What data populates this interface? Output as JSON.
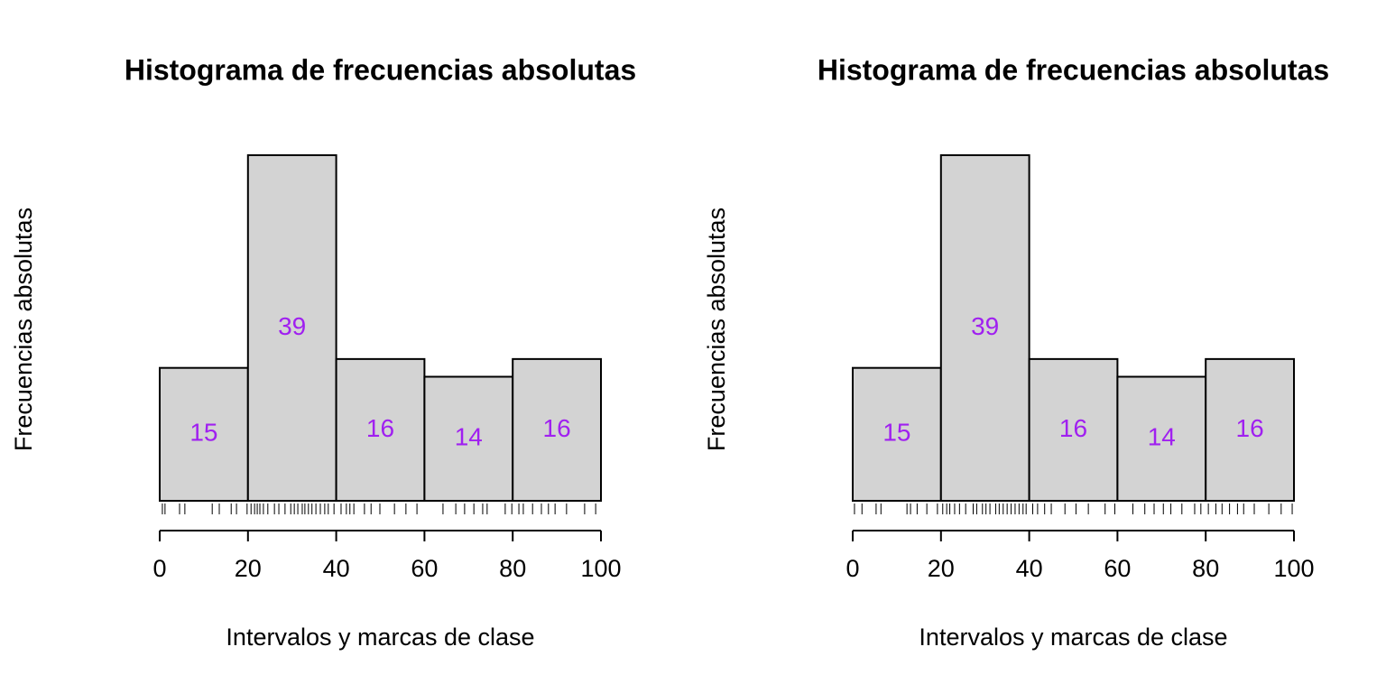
{
  "chart_data": [
    {
      "type": "histogram",
      "title": "Histograma de frecuencias absolutas",
      "xlabel": "Intervalos y marcas de clase",
      "ylabel": "Frecuencias absolutas",
      "bins": [
        0,
        20,
        40,
        60,
        80,
        100
      ],
      "counts": [
        15,
        39,
        16,
        14,
        16
      ],
      "color": "#d3d3d3",
      "label_color": "#a020f0",
      "xlim": [
        0,
        100
      ],
      "xticks": [
        0,
        20,
        40,
        60,
        80,
        100
      ],
      "rug": [
        0.6,
        1.2,
        4.5,
        5.7,
        11.9,
        13.5,
        16.2,
        17.4,
        19.8,
        20.7,
        21.5,
        22.1,
        22.7,
        23.5,
        24.5,
        26,
        27,
        28.4,
        29.7,
        30.5,
        31.3,
        32.3,
        32.9,
        33.7,
        34.5,
        35.4,
        36.4,
        37.4,
        38.2,
        39.5,
        41.1,
        42.3,
        43.1,
        44,
        46.4,
        47.9,
        49.9,
        53.2,
        55.8,
        58.3,
        64.2,
        67.1,
        69.1,
        71.2,
        73.2,
        74.2,
        78.3,
        79.8,
        81.4,
        82.4,
        84.5,
        86.5,
        88.1,
        89.6,
        92.2,
        96.3,
        98.8
      ]
    },
    {
      "type": "histogram",
      "title": "Histograma de frecuencias absolutas",
      "xlabel": "Intervalos y marcas de clase",
      "ylabel": "Frecuencias absolutas",
      "bins": [
        0,
        20,
        40,
        60,
        80,
        100
      ],
      "counts": [
        15,
        39,
        16,
        14,
        16
      ],
      "color": "#d3d3d3",
      "label_color": "#a020f0",
      "xlim": [
        0,
        100
      ],
      "xticks": [
        0,
        20,
        40,
        60,
        80,
        100
      ],
      "rug": [
        0.4,
        2.1,
        5.3,
        6.4,
        12.3,
        13.1,
        14.6,
        16.8,
        19.2,
        20.4,
        21.3,
        22,
        23.1,
        24.2,
        25.6,
        27.3,
        28.1,
        29.4,
        30.2,
        31.1,
        32.4,
        33.2,
        34.1,
        35,
        35.9,
        36.8,
        37.7,
        38.6,
        39.3,
        40.8,
        41.9,
        43.5,
        45,
        48.1,
        50.6,
        53.4,
        57.2,
        59.4,
        63.5,
        66.2,
        68.3,
        70.4,
        72.1,
        74.6,
        77.5,
        78.9,
        80.6,
        82.3,
        83.7,
        85.4,
        87.2,
        88.6,
        91,
        94.3,
        97.1,
        99.6
      ]
    }
  ]
}
